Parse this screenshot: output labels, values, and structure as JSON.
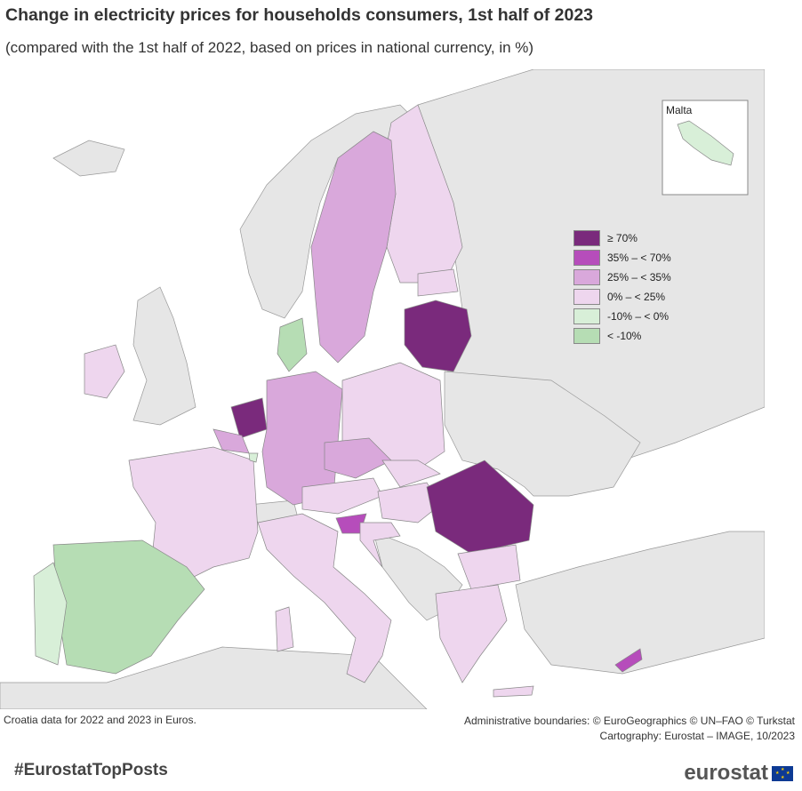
{
  "title": "Change in electricity prices for households consumers, 1st half of 2023",
  "subtitle": "(compared with the 1st half of 2022, based on prices in national currency, in %)",
  "inset": {
    "label": "Malta"
  },
  "colors": {
    "c70": "#7a2a7c",
    "c35": "#b64dbb",
    "c25": "#d9a8db",
    "c0": "#eed6ee",
    "cneg10": "#d8efd8",
    "cneg": "#b6ddb4",
    "nodata": "#e6e6e6",
    "sea": "#ffffff"
  },
  "legend": [
    {
      "label": "≥ 70%",
      "color": "#7a2a7c"
    },
    {
      "label": "35% – < 70%",
      "color": "#b64dbb"
    },
    {
      "label": "25% – < 35%",
      "color": "#d9a8db"
    },
    {
      "label": "0% – < 25%",
      "color": "#eed6ee"
    },
    {
      "label": "-10% – < 0%",
      "color": "#d8efd8"
    },
    {
      "label": "< -10%",
      "color": "#b6ddb4"
    }
  ],
  "notes": {
    "left": "Croatia data for 2022 and 2023 in Euros.",
    "right_line1": "Administrative boundaries: © EuroGeographics © UN–FAO © Turkstat",
    "right_line2": "Cartography: Eurostat – IMAGE, 10/2023"
  },
  "footer": {
    "hashtag": "#EurostatTopPosts",
    "brand": "eurostat"
  }
}
